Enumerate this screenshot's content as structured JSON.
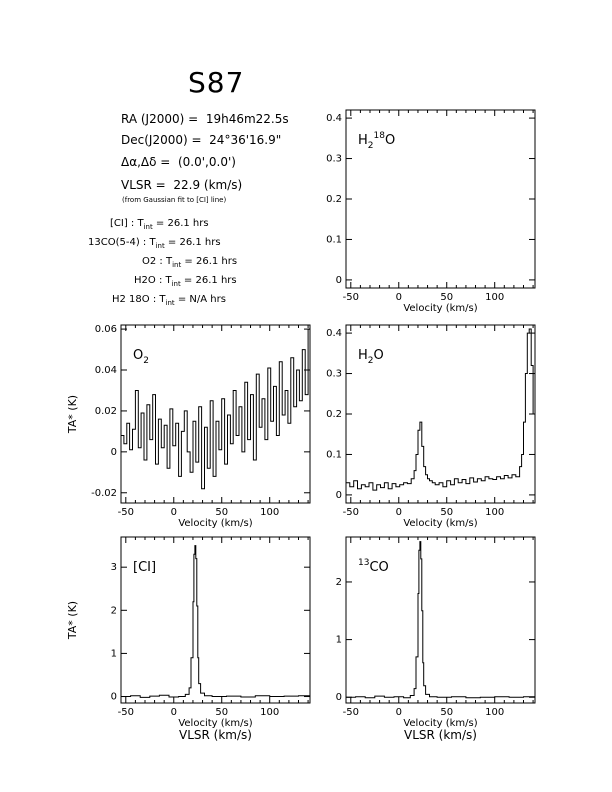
{
  "source": {
    "name": "S87",
    "ra_label": "RA (J2000)",
    "ra": "19h46m22.5s",
    "dec_label": "Dec(J2000)",
    "dec": "24°36'16.9\"",
    "offset_label": "Δα,Δδ",
    "offset": "(0.0',0.0')",
    "vlsr_label": "VLSR",
    "vlsr": "22.9 (km/s)",
    "vlsr_note": "(from Gaussian fit to [CI] line)",
    "integrations": [
      {
        "line": "[CI]",
        "tint": "26.1 hrs"
      },
      {
        "line": "13CO(5-4)",
        "tint": "26.1 hrs"
      },
      {
        "line": "O2",
        "tint": "26.1 hrs"
      },
      {
        "line": "H2O",
        "tint": "26.1 hrs"
      },
      {
        "line": "H2 18O",
        "tint": "N/A hrs"
      }
    ]
  },
  "chart_data": [
    {
      "id": "h218o",
      "type": "line",
      "label": "H2 18O",
      "xlabel": "Velocity (km/s)",
      "ylabel": "",
      "xlim": [
        -55,
        142
      ],
      "ylim": [
        -0.02,
        0.42
      ],
      "xticks": [
        -50,
        0,
        50,
        100
      ],
      "yticks": [
        0,
        0.1,
        0.2,
        0.3,
        0.4
      ],
      "yticklabels": [
        "0",
        "0.1",
        "0.2",
        "0.3",
        "0.4"
      ],
      "series": []
    },
    {
      "id": "o2",
      "type": "line",
      "label": "O2",
      "xlabel": "Velocity (km/s)",
      "ylabel": "TA* (K)",
      "xlim": [
        -55,
        142
      ],
      "ylim": [
        -0.025,
        0.062
      ],
      "xticks": [
        -50,
        0,
        50,
        100
      ],
      "yticks": [
        -0.02,
        0,
        0.02,
        0.04,
        0.06
      ],
      "yticklabels": [
        "-0.02",
        "0",
        "0.02",
        "0.04",
        "0.06"
      ],
      "series": [
        {
          "x": [
            -55,
            -52,
            -49,
            -46,
            -43,
            -40,
            -37,
            -34,
            -31,
            -28,
            -25,
            -22,
            -19,
            -16,
            -13,
            -10,
            -7,
            -4,
            -1,
            2,
            5,
            8,
            11,
            14,
            17,
            20,
            23,
            26,
            29,
            32,
            35,
            38,
            41,
            44,
            47,
            50,
            53,
            56,
            59,
            62,
            65,
            68,
            71,
            74,
            77,
            80,
            83,
            86,
            89,
            92,
            95,
            98,
            101,
            104,
            107,
            110,
            113,
            116,
            119,
            122,
            125,
            128,
            131,
            134,
            137,
            140,
            142
          ],
          "y": [
            0.008,
            0.004,
            0.014,
            0.001,
            0.011,
            0.03,
            0.002,
            0.019,
            -0.004,
            0.023,
            0.006,
            0.028,
            -0.006,
            0.016,
            0.002,
            0.013,
            -0.008,
            0.021,
            0.003,
            0.014,
            -0.012,
            0.01,
            0.02,
            0.0,
            -0.01,
            0.015,
            -0.005,
            0.022,
            -0.018,
            0.012,
            -0.008,
            0.025,
            -0.012,
            0.015,
            0.001,
            0.026,
            -0.006,
            0.018,
            0.004,
            0.03,
            0.008,
            0.022,
            0.0,
            0.034,
            0.006,
            0.028,
            -0.004,
            0.038,
            0.012,
            0.026,
            0.006,
            0.041,
            0.015,
            0.032,
            0.008,
            0.044,
            0.018,
            0.03,
            0.014,
            0.046,
            0.022,
            0.04,
            0.025,
            0.05,
            0.028,
            0.06,
            0.045
          ]
        }
      ]
    },
    {
      "id": "h2o",
      "type": "line",
      "label": "H2O",
      "xlabel": "Velocity (km/s)",
      "ylabel": "",
      "xlim": [
        -55,
        142
      ],
      "ylim": [
        -0.02,
        0.42
      ],
      "xticks": [
        -50,
        0,
        50,
        100
      ],
      "yticks": [
        0,
        0.1,
        0.2,
        0.3,
        0.4
      ],
      "yticklabels": [
        "0",
        "0.1",
        "0.2",
        "0.3",
        "0.4"
      ],
      "series": [
        {
          "x": [
            -55,
            -51,
            -47,
            -43,
            -39,
            -35,
            -31,
            -27,
            -23,
            -19,
            -15,
            -11,
            -7,
            -3,
            1,
            5,
            9,
            13,
            16,
            18,
            20,
            22,
            24,
            26,
            28,
            30,
            32,
            35,
            38,
            42,
            46,
            50,
            54,
            58,
            62,
            66,
            70,
            74,
            78,
            82,
            86,
            90,
            94,
            98,
            102,
            106,
            110,
            114,
            118,
            122,
            126,
            128,
            130,
            132,
            134,
            136,
            138,
            140,
            142
          ],
          "y": [
            0.03,
            0.02,
            0.035,
            0.015,
            0.025,
            0.02,
            0.03,
            0.012,
            0.025,
            0.018,
            0.03,
            0.015,
            0.028,
            0.02,
            0.025,
            0.03,
            0.028,
            0.04,
            0.06,
            0.1,
            0.16,
            0.18,
            0.12,
            0.07,
            0.05,
            0.04,
            0.035,
            0.03,
            0.025,
            0.03,
            0.02,
            0.035,
            0.025,
            0.04,
            0.03,
            0.038,
            0.028,
            0.042,
            0.032,
            0.04,
            0.035,
            0.045,
            0.04,
            0.038,
            0.045,
            0.04,
            0.048,
            0.042,
            0.05,
            0.045,
            0.07,
            0.1,
            0.18,
            0.3,
            0.4,
            0.41,
            0.32,
            0.2,
            0.1
          ]
        }
      ]
    },
    {
      "id": "ci",
      "type": "line",
      "label": "[CI]",
      "xlabel": "Velocity (km/s)",
      "xlabel2": "VLSR (km/s)",
      "ylabel": "TA* (K)",
      "xlim": [
        -55,
        142
      ],
      "ylim": [
        -0.15,
        3.7
      ],
      "xticks": [
        -50,
        0,
        50,
        100
      ],
      "yticks": [
        0,
        1,
        2,
        3
      ],
      "yticklabels": [
        "0",
        "1",
        "2",
        "3"
      ],
      "series": [
        {
          "x": [
            -55,
            -45,
            -35,
            -25,
            -15,
            -5,
            5,
            12,
            16,
            18,
            20,
            21,
            22,
            23,
            24,
            25,
            26,
            28,
            32,
            40,
            55,
            70,
            85,
            100,
            115,
            130,
            142
          ],
          "y": [
            0.0,
            0.02,
            -0.02,
            0.01,
            0.03,
            -0.01,
            0.0,
            0.05,
            0.2,
            0.9,
            2.2,
            3.3,
            3.5,
            3.2,
            2.1,
            0.9,
            0.3,
            0.08,
            0.02,
            0.0,
            0.01,
            -0.01,
            0.02,
            0.0,
            0.01,
            0.02,
            0.0
          ]
        }
      ]
    },
    {
      "id": "13co",
      "type": "line",
      "label": "13CO",
      "xlabel": "Velocity (km/s)",
      "xlabel2": "VLSR (km/s)",
      "ylabel": "",
      "xlim": [
        -55,
        142
      ],
      "ylim": [
        -0.1,
        2.78
      ],
      "xticks": [
        -50,
        0,
        50,
        100
      ],
      "yticks": [
        0,
        1,
        2
      ],
      "yticklabels": [
        "0",
        "1",
        "2"
      ],
      "series": [
        {
          "x": [
            -55,
            -45,
            -35,
            -25,
            -15,
            -5,
            5,
            12,
            16,
            18,
            20,
            21,
            22,
            23,
            24,
            25,
            26,
            28,
            32,
            40,
            55,
            70,
            85,
            100,
            115,
            130,
            142
          ],
          "y": [
            0.0,
            0.01,
            -0.01,
            0.02,
            0.0,
            0.01,
            -0.01,
            0.03,
            0.15,
            0.7,
            1.8,
            2.55,
            2.7,
            2.4,
            1.5,
            0.6,
            0.2,
            0.05,
            0.01,
            0.0,
            0.01,
            -0.01,
            0.0,
            0.01,
            0.0,
            0.01,
            0.0
          ]
        }
      ]
    }
  ]
}
